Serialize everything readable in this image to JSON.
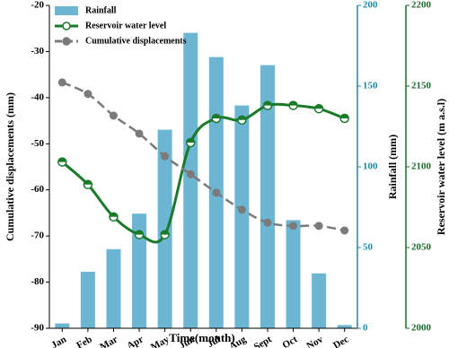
{
  "chart_data": {
    "type": "combo",
    "x_label": "Time(month)",
    "y_label": "Cumulative displacements (mm)",
    "y2_label": "Rainfall (mm)",
    "y3_label": "Reservoir water level (m a.s.l)",
    "categories": [
      "Jan",
      "Feb",
      "Mar",
      "Apr",
      "May",
      "Jun",
      "Jul",
      "Aug",
      "Sept",
      "Oct",
      "Nov",
      "Dec"
    ],
    "series": [
      {
        "name": "Rainfall",
        "type": "bar",
        "axis": "y2",
        "color": "#6cb6d4",
        "values": [
          3,
          35,
          49,
          71,
          123,
          183,
          168,
          138,
          163,
          67,
          34,
          2
        ]
      },
      {
        "name": "Reservoir water level",
        "type": "line",
        "axis": "y3",
        "color": "#1a7a2a",
        "values": [
          2103,
          2089,
          2069,
          2058,
          2058,
          2115,
          2130,
          2129,
          2138,
          2138,
          2136,
          2130
        ]
      },
      {
        "name": "Cumulative displacements",
        "type": "line",
        "axis": "y",
        "color": "#7a7a7a",
        "values": [
          -36.7,
          -39.2,
          -43.9,
          -47.8,
          -52.7,
          -56.6,
          -60.6,
          -64.3,
          -67.1,
          -67.8,
          -67.8,
          -68.8
        ]
      }
    ],
    "ylim": [
      -90,
      -20
    ],
    "yticks": [
      -90,
      -80,
      -70,
      -60,
      -50,
      -40,
      -30,
      -20
    ],
    "y2lim": [
      0,
      200
    ],
    "y2ticks": [
      0,
      50,
      100,
      150,
      200
    ],
    "y2_color": "#1a8aaa",
    "y3lim": [
      2000,
      2200
    ],
    "y3ticks": [
      2000,
      2050,
      2100,
      2150,
      2200
    ],
    "y3_color": "#1a6a2a",
    "legend": "upper-left"
  }
}
